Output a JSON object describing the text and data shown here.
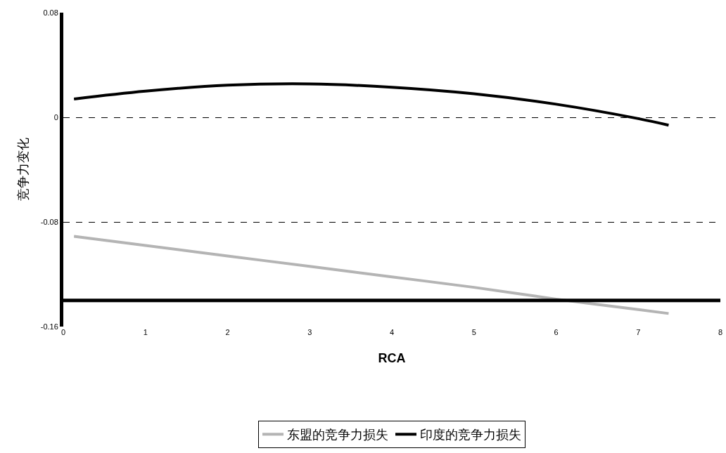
{
  "chart_data": {
    "type": "line",
    "xlabel": "RCA",
    "ylabel": "竞争力变化",
    "xlim": [
      0,
      8
    ],
    "xticks": [
      0,
      1,
      2,
      3,
      4,
      5,
      6,
      7,
      8
    ],
    "ylim": [
      -0.16,
      0.08
    ],
    "yticks": [
      -0.16,
      -0.08,
      0,
      0.08
    ],
    "grid": "y",
    "legend": "bottom",
    "marker": "none",
    "line_style": "solid",
    "ref_lines": [
      {
        "axis": "y",
        "value": -0.14,
        "color": "#000000"
      }
    ],
    "series": [
      {
        "name": "东盟的竞争力损失",
        "color": "#b4b4b4",
        "x": [
          0.13,
          1,
          2,
          3,
          4,
          5,
          6,
          7,
          7.37
        ],
        "values": [
          -0.091,
          -0.098,
          -0.106,
          -0.114,
          -0.122,
          -0.13,
          -0.139,
          -0.147,
          -0.15
        ]
      },
      {
        "name": "印度的竞争力损失",
        "color": "#000000",
        "x": [
          0.13,
          1,
          2,
          3,
          4,
          5,
          6,
          7,
          7.37
        ],
        "values": [
          0.014,
          0.02,
          0.0245,
          0.0255,
          0.023,
          0.018,
          0.01,
          -0.001,
          -0.006
        ]
      }
    ]
  }
}
